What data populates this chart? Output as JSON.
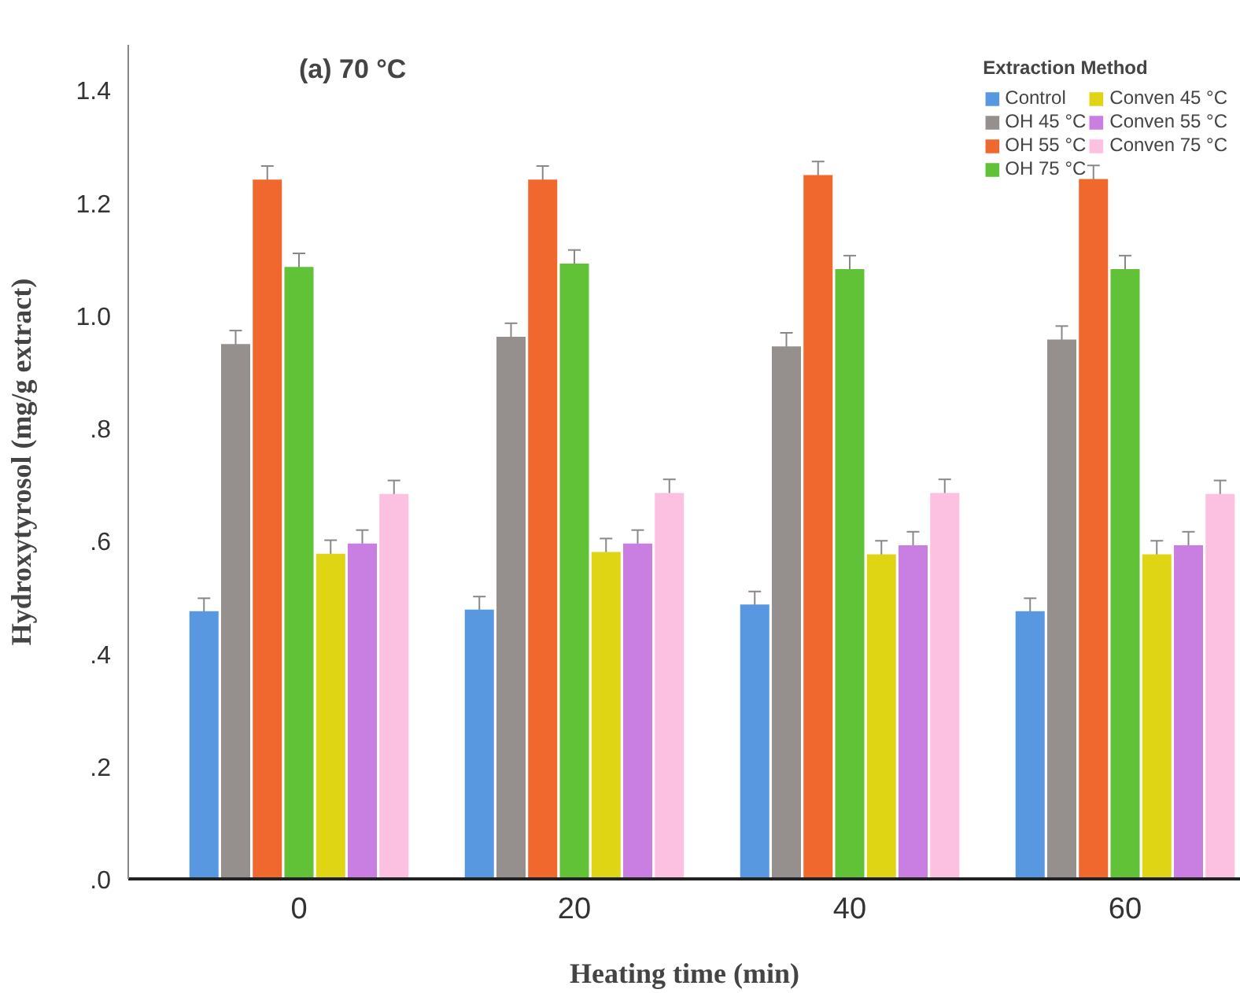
{
  "chart_data": {
    "type": "bar",
    "title": "(a) 70 °C",
    "xlabel": "Heating time (min)",
    "ylabel": "Hydroxytyrosol (mg/g extract)",
    "legend_title": "Extraction Method",
    "categories": [
      "0",
      "20",
      "40",
      "60"
    ],
    "series": [
      {
        "name": "Control",
        "color": "#5898e0",
        "values": [
          0.475,
          0.478,
          0.487,
          0.475
        ],
        "errors": [
          0.023,
          0.023,
          0.023,
          0.023
        ]
      },
      {
        "name": "OH 45 °C",
        "color": "#958f8e",
        "values": [
          0.949,
          0.962,
          0.945,
          0.957
        ],
        "errors": [
          0.024,
          0.024,
          0.024,
          0.024
        ]
      },
      {
        "name": "OH 55 °C",
        "color": "#f0682d",
        "values": [
          1.241,
          1.241,
          1.249,
          1.242
        ],
        "errors": [
          0.024,
          0.024,
          0.024,
          0.024
        ]
      },
      {
        "name": "OH 75 °C",
        "color": "#61c237",
        "values": [
          1.086,
          1.092,
          1.082,
          1.082
        ],
        "errors": [
          0.024,
          0.024,
          0.024,
          0.024
        ]
      },
      {
        "name": "Conven 45 °C",
        "color": "#e0d514",
        "values": [
          0.577,
          0.58,
          0.576,
          0.576
        ],
        "errors": [
          0.024,
          0.024,
          0.024,
          0.024
        ]
      },
      {
        "name": "Conven 55 °C",
        "color": "#c97fe2",
        "values": [
          0.595,
          0.595,
          0.592,
          0.592
        ],
        "errors": [
          0.024,
          0.024,
          0.024,
          0.024
        ]
      },
      {
        "name": "Conven 75 °C",
        "color": "#fcc1e0",
        "values": [
          0.683,
          0.685,
          0.685,
          0.683
        ],
        "errors": [
          0.024,
          0.024,
          0.024,
          0.024
        ]
      }
    ],
    "ylim": [
      0,
      1.48
    ],
    "yticks": [
      {
        "value": 0,
        "label": ".0"
      },
      {
        "value": 0.2,
        "label": ".2"
      },
      {
        "value": 0.4,
        "label": ".4"
      },
      {
        "value": 0.6,
        "label": ".6"
      },
      {
        "value": 0.8,
        "label": ".8"
      },
      {
        "value": 1.0,
        "label": "1.0"
      },
      {
        "value": 1.2,
        "label": "1.2"
      },
      {
        "value": 1.4,
        "label": "1.4"
      }
    ],
    "grid": false,
    "legend": "top right"
  }
}
